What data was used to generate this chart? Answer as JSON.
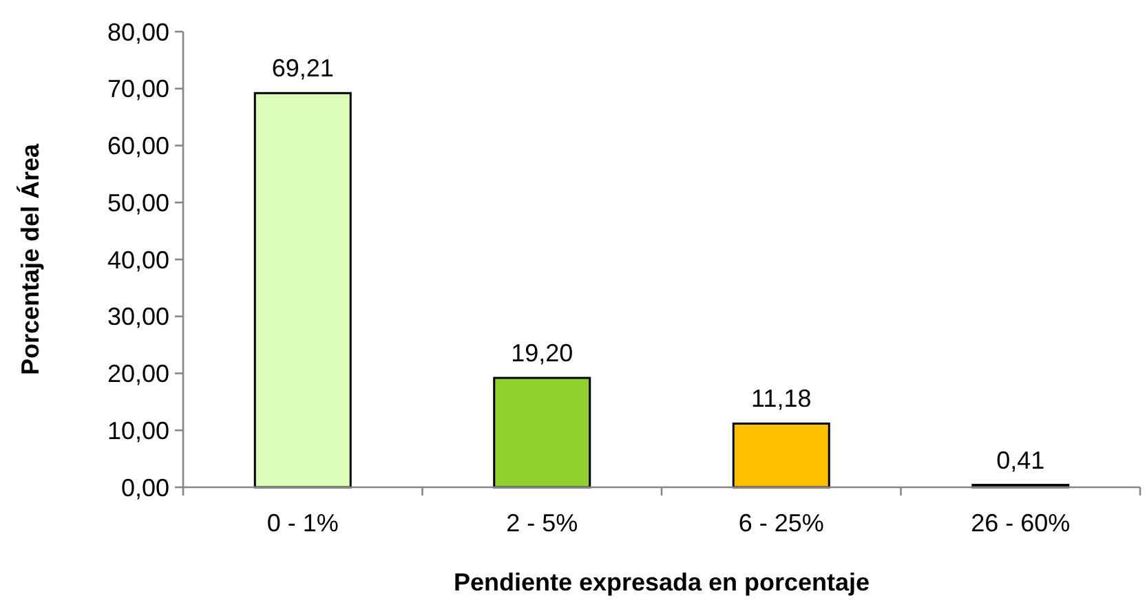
{
  "chart_data": {
    "type": "bar",
    "xlabel": "Pendiente expresada en porcentaje",
    "ylabel": "Porcentaje del Área",
    "categories": [
      "0 - 1%",
      "2 - 5%",
      "6 - 25%",
      "26 - 60%"
    ],
    "values": [
      69.21,
      19.2,
      11.18,
      0.41
    ],
    "colors": [
      "#dbfdb8",
      "#92d02f",
      "#ffc000",
      "#404040"
    ],
    "value_labels": [
      "69,21",
      "19,20",
      "11,18",
      "0,41"
    ],
    "ylim": [
      0,
      80
    ],
    "yticks": [
      {
        "value": 0,
        "label": "0,00"
      },
      {
        "value": 10,
        "label": "10,00"
      },
      {
        "value": 20,
        "label": "20,00"
      },
      {
        "value": 30,
        "label": "30,00"
      },
      {
        "value": 40,
        "label": "40,00"
      },
      {
        "value": 50,
        "label": "50,00"
      },
      {
        "value": 60,
        "label": "60,00"
      },
      {
        "value": 70,
        "label": "70,00"
      },
      {
        "value": 80,
        "label": "80,00"
      }
    ],
    "grid": false
  }
}
